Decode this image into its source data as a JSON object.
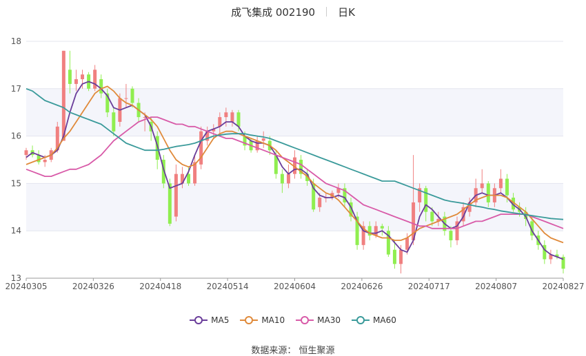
{
  "header": {
    "title": "成飞集成 002190",
    "period": "日K"
  },
  "footer": {
    "source": "数据来源： 恒生聚源"
  },
  "chart_data": {
    "type": "candlestick",
    "y_ticks": [
      "13",
      "14",
      "15",
      "16",
      "17",
      "18"
    ],
    "ylim": [
      13,
      18
    ],
    "x_tick_labels": [
      "20240305",
      "20240326",
      "20240418",
      "20240514",
      "20240604",
      "20240626",
      "20240717",
      "20240807",
      "20240827"
    ],
    "colors": {
      "up": "#f08080",
      "down": "#90ee50",
      "MA5": "#6a3d9a",
      "MA10": "#e08a3a",
      "MA30": "#d85aa8",
      "MA60": "#3a9a9a"
    },
    "legend": [
      "MA5",
      "MA10",
      "MA30",
      "MA60"
    ],
    "candles": [
      [
        15.6,
        15.7,
        15.75,
        15.5
      ],
      [
        15.7,
        15.6,
        15.8,
        15.55
      ],
      [
        15.6,
        15.45,
        15.7,
        15.4
      ],
      [
        15.45,
        15.5,
        15.6,
        15.35
      ],
      [
        15.5,
        15.7,
        15.75,
        15.45
      ],
      [
        15.7,
        16.2,
        16.3,
        15.65
      ],
      [
        15.9,
        17.8,
        17.8,
        15.9
      ],
      [
        17.4,
        17.1,
        17.8,
        16.9
      ],
      [
        17.1,
        17.2,
        17.4,
        16.95
      ],
      [
        17.2,
        17.3,
        17.4,
        17.0
      ],
      [
        17.3,
        17.0,
        17.35,
        16.95
      ],
      [
        17.0,
        17.4,
        17.5,
        16.95
      ],
      [
        17.2,
        16.9,
        17.3,
        16.8
      ],
      [
        16.9,
        16.5,
        17.0,
        16.4
      ],
      [
        16.5,
        16.1,
        16.6,
        16.0
      ],
      [
        16.3,
        16.8,
        16.9,
        16.2
      ],
      [
        16.8,
        16.8,
        17.1,
        16.6
      ],
      [
        17.0,
        16.7,
        17.05,
        16.6
      ],
      [
        16.7,
        16.4,
        16.8,
        16.3
      ],
      [
        16.4,
        16.4,
        16.5,
        16.1
      ],
      [
        16.3,
        16.1,
        16.4,
        15.9
      ],
      [
        16.0,
        15.5,
        16.1,
        15.3
      ],
      [
        15.5,
        15.0,
        15.6,
        14.9
      ],
      [
        15.0,
        14.15,
        15.1,
        14.1
      ],
      [
        14.3,
        15.2,
        15.4,
        14.2
      ],
      [
        15.0,
        15.2,
        15.35,
        14.9
      ],
      [
        15.2,
        15.0,
        15.35,
        14.95
      ],
      [
        15.0,
        15.45,
        15.6,
        14.95
      ],
      [
        15.4,
        16.1,
        16.2,
        15.3
      ],
      [
        15.9,
        16.1,
        16.2,
        15.8
      ],
      [
        16.1,
        16.15,
        16.25,
        15.95
      ],
      [
        16.2,
        16.4,
        16.5,
        16.05
      ],
      [
        16.4,
        16.5,
        16.6,
        16.2
      ],
      [
        16.3,
        16.5,
        16.55,
        16.2
      ],
      [
        16.5,
        16.2,
        16.55,
        16.1
      ],
      [
        16.0,
        15.8,
        16.1,
        15.7
      ],
      [
        15.9,
        15.7,
        15.95,
        15.65
      ],
      [
        15.7,
        15.9,
        16.0,
        15.65
      ],
      [
        15.9,
        15.95,
        16.1,
        15.75
      ],
      [
        15.9,
        15.7,
        16.0,
        15.6
      ],
      [
        15.6,
        15.2,
        15.7,
        15.1
      ],
      [
        15.2,
        15.0,
        15.3,
        14.8
      ],
      [
        15.0,
        15.2,
        15.4,
        14.9
      ],
      [
        15.2,
        15.55,
        15.7,
        15.1
      ],
      [
        15.5,
        15.2,
        15.6,
        15.1
      ],
      [
        15.2,
        15.05,
        15.3,
        14.95
      ],
      [
        15.0,
        14.45,
        15.1,
        14.4
      ],
      [
        14.5,
        14.7,
        14.8,
        14.4
      ],
      [
        14.7,
        14.7,
        14.8,
        14.6
      ],
      [
        14.7,
        14.8,
        14.85,
        14.65
      ],
      [
        14.8,
        14.9,
        15.0,
        14.7
      ],
      [
        14.9,
        14.6,
        15.0,
        14.5
      ],
      [
        14.6,
        14.3,
        14.7,
        14.2
      ],
      [
        14.3,
        13.7,
        14.4,
        13.6
      ],
      [
        13.7,
        14.1,
        14.2,
        13.6
      ],
      [
        14.1,
        13.9,
        14.2,
        13.8
      ],
      [
        13.9,
        14.1,
        14.2,
        13.85
      ],
      [
        14.1,
        14.05,
        14.15,
        13.9
      ],
      [
        14.0,
        13.5,
        14.1,
        13.45
      ],
      [
        13.6,
        13.3,
        13.8,
        13.2
      ],
      [
        13.3,
        13.6,
        13.7,
        13.1
      ],
      [
        13.6,
        13.85,
        13.95,
        13.5
      ],
      [
        13.8,
        14.6,
        15.6,
        13.7
      ],
      [
        14.6,
        14.9,
        15.0,
        14.4
      ],
      [
        14.9,
        14.4,
        14.95,
        14.2
      ],
      [
        14.4,
        14.2,
        14.5,
        14.1
      ],
      [
        14.2,
        14.25,
        14.4,
        14.1
      ],
      [
        14.3,
        14.0,
        14.4,
        13.9
      ],
      [
        14.0,
        13.8,
        14.1,
        13.65
      ],
      [
        13.8,
        14.2,
        14.3,
        13.7
      ],
      [
        14.2,
        14.5,
        14.6,
        14.1
      ],
      [
        14.4,
        14.6,
        14.7,
        14.3
      ],
      [
        14.6,
        14.9,
        15.1,
        14.5
      ],
      [
        14.9,
        15.0,
        15.3,
        14.8
      ],
      [
        15.0,
        14.6,
        15.05,
        14.5
      ],
      [
        14.6,
        14.9,
        15.0,
        14.5
      ],
      [
        14.9,
        15.1,
        15.3,
        14.8
      ],
      [
        15.1,
        14.75,
        15.2,
        14.6
      ],
      [
        14.7,
        14.45,
        14.8,
        14.4
      ],
      [
        14.5,
        14.4,
        14.6,
        14.3
      ],
      [
        14.4,
        14.25,
        14.5,
        14.1
      ],
      [
        14.2,
        13.9,
        14.3,
        13.8
      ],
      [
        13.9,
        13.7,
        14.0,
        13.6
      ],
      [
        13.7,
        13.4,
        13.8,
        13.3
      ],
      [
        13.4,
        13.5,
        13.6,
        13.3
      ],
      [
        13.5,
        13.45,
        13.6,
        13.4
      ],
      [
        13.45,
        13.2,
        13.5,
        13.1
      ]
    ],
    "ma_series": [
      {
        "name": "MA5",
        "values": [
          15.55,
          15.65,
          15.6,
          15.55,
          15.6,
          15.7,
          16.0,
          16.5,
          16.9,
          17.1,
          17.15,
          17.1,
          17.0,
          16.85,
          16.6,
          16.55,
          16.6,
          16.65,
          16.55,
          16.45,
          16.2,
          15.8,
          15.3,
          14.9,
          14.95,
          15.0,
          15.25,
          15.6,
          15.9,
          16.1,
          16.15,
          16.2,
          16.3,
          16.3,
          16.2,
          16.0,
          15.9,
          15.85,
          15.85,
          15.8,
          15.6,
          15.35,
          15.2,
          15.3,
          15.3,
          15.2,
          14.9,
          14.75,
          14.7,
          14.7,
          14.75,
          14.7,
          14.5,
          14.2,
          14.0,
          13.95,
          13.95,
          14.0,
          13.9,
          13.75,
          13.6,
          13.55,
          13.8,
          14.3,
          14.55,
          14.45,
          14.3,
          14.15,
          14.05,
          14.1,
          14.3,
          14.6,
          14.75,
          14.8,
          14.75,
          14.75,
          14.8,
          14.7,
          14.55,
          14.45,
          14.3,
          14.0,
          13.8,
          13.6,
          13.5,
          13.45,
          13.4
        ]
      },
      {
        "name": "MA10",
        "values": [
          15.4,
          15.45,
          15.5,
          15.55,
          15.6,
          15.75,
          15.95,
          16.1,
          16.3,
          16.5,
          16.7,
          16.9,
          17.0,
          17.05,
          16.95,
          16.8,
          16.7,
          16.65,
          16.55,
          16.45,
          16.35,
          16.2,
          15.95,
          15.7,
          15.5,
          15.4,
          15.35,
          15.4,
          15.55,
          15.75,
          15.95,
          16.05,
          16.1,
          16.1,
          16.05,
          16.0,
          15.95,
          15.9,
          15.85,
          15.8,
          15.7,
          15.55,
          15.45,
          15.35,
          15.25,
          15.15,
          15.0,
          14.9,
          14.8,
          14.75,
          14.65,
          14.5,
          14.35,
          14.2,
          14.05,
          13.95,
          13.9,
          13.85,
          13.85,
          13.8,
          13.8,
          13.85,
          13.95,
          14.05,
          14.1,
          14.15,
          14.2,
          14.25,
          14.3,
          14.35,
          14.45,
          14.55,
          14.65,
          14.7,
          14.75,
          14.75,
          14.75,
          14.7,
          14.6,
          14.5,
          14.4,
          14.25,
          14.1,
          13.95,
          13.85,
          13.8,
          13.75
        ]
      },
      {
        "name": "MA30",
        "values": [
          15.3,
          15.25,
          15.2,
          15.15,
          15.15,
          15.2,
          15.25,
          15.3,
          15.3,
          15.35,
          15.4,
          15.5,
          15.6,
          15.75,
          15.9,
          16.0,
          16.1,
          16.2,
          16.3,
          16.35,
          16.4,
          16.4,
          16.35,
          16.3,
          16.25,
          16.25,
          16.2,
          16.2,
          16.15,
          16.1,
          16.05,
          16.0,
          15.95,
          15.95,
          15.9,
          15.85,
          15.8,
          15.75,
          15.7,
          15.65,
          15.6,
          15.55,
          15.5,
          15.45,
          15.4,
          15.3,
          15.2,
          15.1,
          15.0,
          14.95,
          14.9,
          14.85,
          14.75,
          14.65,
          14.55,
          14.5,
          14.45,
          14.4,
          14.35,
          14.3,
          14.25,
          14.2,
          14.15,
          14.1,
          14.1,
          14.05,
          14.05,
          14.05,
          14.05,
          14.05,
          14.1,
          14.15,
          14.2,
          14.2,
          14.25,
          14.3,
          14.35,
          14.35,
          14.35,
          14.35,
          14.35,
          14.3,
          14.25,
          14.2,
          14.15,
          14.1,
          14.05
        ]
      },
      {
        "name": "MA60",
        "values": [
          17.0,
          16.95,
          16.85,
          16.75,
          16.7,
          16.65,
          16.6,
          16.5,
          16.45,
          16.4,
          16.35,
          16.3,
          16.25,
          16.15,
          16.05,
          15.95,
          15.85,
          15.8,
          15.75,
          15.7,
          15.7,
          15.7,
          15.72,
          15.75,
          15.78,
          15.8,
          15.82,
          15.85,
          15.9,
          15.95,
          16.0,
          16.02,
          16.04,
          16.05,
          16.05,
          16.05,
          16.02,
          16.0,
          15.98,
          15.95,
          15.9,
          15.85,
          15.8,
          15.75,
          15.7,
          15.65,
          15.6,
          15.55,
          15.5,
          15.45,
          15.4,
          15.35,
          15.3,
          15.25,
          15.2,
          15.15,
          15.1,
          15.05,
          15.05,
          15.05,
          15.0,
          14.95,
          14.9,
          14.85,
          14.8,
          14.75,
          14.7,
          14.65,
          14.62,
          14.6,
          14.58,
          14.55,
          14.52,
          14.5,
          14.47,
          14.45,
          14.42,
          14.4,
          14.38,
          14.36,
          14.34,
          14.32,
          14.3,
          14.28,
          14.26,
          14.25,
          14.24
        ]
      }
    ]
  }
}
